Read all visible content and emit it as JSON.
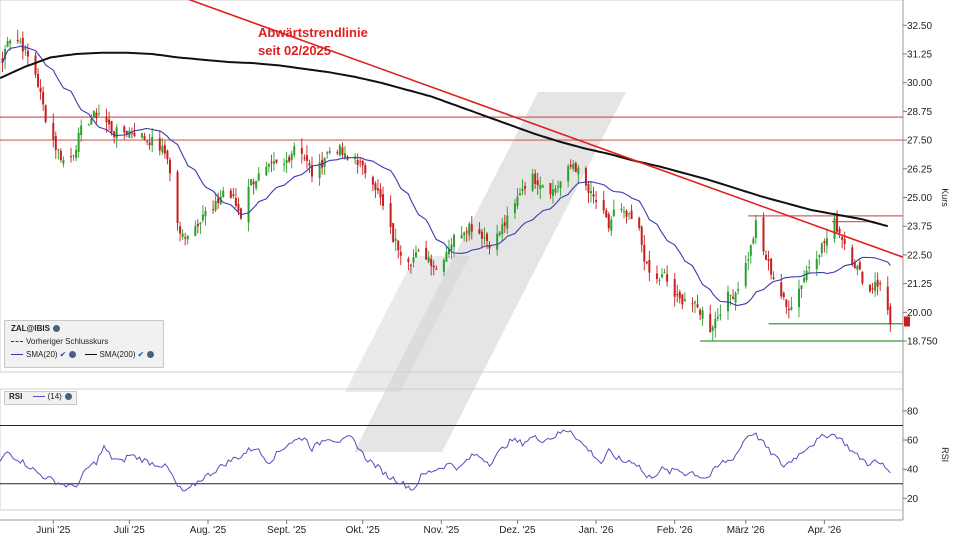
{
  "annotation": {
    "line1": "Abwärtstrendlinie",
    "line2": "seit 02/2025"
  },
  "legend": {
    "symbol": "ZAL@IBIS",
    "prev_close": "Vorheriger Schlusskurs",
    "sma20": "SMA(20)",
    "sma200": "SMA(200)"
  },
  "rsi_legend": {
    "name": "RSI",
    "param": "(14)"
  },
  "colors": {
    "up": "#2e9e2e",
    "down": "#c81e1e",
    "sma20": "#3b3bb0",
    "sma200": "#111111",
    "trend": "#e02020",
    "hline": "#d06060",
    "support": "#3a9a3a",
    "rsi": "#5050c0",
    "watermark": "#d0d0d0"
  },
  "chart_data": [
    {
      "type": "candlestick",
      "title": "",
      "ylabel": "Kurs",
      "ylim": [
        17.4,
        33.6
      ],
      "yticks": [
        "32.50",
        "31.25",
        "30.00",
        "28.75",
        "27.50",
        "26.25",
        "25.00",
        "23.75",
        "22.50",
        "21.25",
        "20.00",
        "18.750"
      ],
      "ytick_values": [
        32.5,
        31.25,
        30.0,
        28.75,
        27.5,
        26.25,
        25.0,
        23.75,
        22.5,
        21.25,
        20.0,
        18.75
      ],
      "xticks": [
        "Juni '25",
        "Juli '25",
        "Aug. '25",
        "Sept. '25",
        "Okt. '25",
        "Nov. '25",
        "Dez. '25",
        "Jan. '26",
        "Feb. '26",
        "März '26",
        "Apr. '26"
      ],
      "xtick_days": [
        21,
        51,
        82,
        113,
        143,
        174,
        204,
        235,
        266,
        294,
        325
      ],
      "xlim_days": [
        0,
        356
      ],
      "close_anchors": [
        [
          0,
          30.3
        ],
        [
          3,
          32.0
        ],
        [
          8,
          31.8
        ],
        [
          14,
          30.4
        ],
        [
          18,
          28.5
        ],
        [
          22,
          27.2
        ],
        [
          26,
          26.4
        ],
        [
          29,
          27.0
        ],
        [
          33,
          28.2
        ],
        [
          39,
          28.7
        ],
        [
          45,
          27.8
        ],
        [
          52,
          27.9
        ],
        [
          57,
          27.6
        ],
        [
          62,
          27.3
        ],
        [
          66,
          26.8
        ],
        [
          68,
          25.2
        ],
        [
          71,
          23.3
        ],
        [
          76,
          23.6
        ],
        [
          80,
          24.3
        ],
        [
          84,
          24.4
        ],
        [
          88,
          25.3
        ],
        [
          92,
          24.9
        ],
        [
          95,
          24.2
        ],
        [
          98,
          25.6
        ],
        [
          103,
          26.0
        ],
        [
          108,
          26.4
        ],
        [
          112,
          26.4
        ],
        [
          115,
          27.0
        ],
        [
          117,
          27.6
        ],
        [
          121,
          26.5
        ],
        [
          124,
          25.8
        ],
        [
          128,
          26.8
        ],
        [
          132,
          27.3
        ],
        [
          137,
          26.6
        ],
        [
          140,
          26.8
        ],
        [
          143,
          26.2
        ],
        [
          146,
          26.1
        ],
        [
          148,
          25.5
        ],
        [
          150,
          24.9
        ],
        [
          152,
          24.2
        ],
        [
          155,
          23.2
        ],
        [
          158,
          22.7
        ],
        [
          162,
          22.3
        ],
        [
          166,
          22.6
        ],
        [
          169,
          22.4
        ],
        [
          172,
          21.9
        ],
        [
          176,
          22.7
        ],
        [
          180,
          23.4
        ],
        [
          185,
          23.8
        ],
        [
          190,
          23.4
        ],
        [
          194,
          22.9
        ],
        [
          198,
          23.7
        ],
        [
          202,
          24.3
        ],
        [
          205,
          25.3
        ],
        [
          209,
          25.9
        ],
        [
          213,
          25.7
        ],
        [
          218,
          25.3
        ],
        [
          222,
          25.8
        ],
        [
          226,
          26.5
        ],
        [
          229,
          25.9
        ],
        [
          232,
          25.2
        ],
        [
          236,
          24.7
        ],
        [
          240,
          23.7
        ],
        [
          243,
          24.7
        ],
        [
          246,
          24.2
        ],
        [
          249,
          24.0
        ],
        [
          252,
          23.5
        ],
        [
          255,
          21.9
        ],
        [
          258,
          21.3
        ],
        [
          262,
          21.6
        ],
        [
          265,
          20.8
        ],
        [
          268,
          20.5
        ],
        [
          271,
          20.7
        ],
        [
          274,
          20.2
        ],
        [
          277,
          20.0
        ],
        [
          280,
          19.3
        ],
        [
          283,
          19.9
        ],
        [
          286,
          20.6
        ],
        [
          290,
          20.9
        ],
        [
          293,
          21.7
        ],
        [
          296,
          22.8
        ],
        [
          298,
          23.8
        ],
        [
          301,
          22.6
        ],
        [
          304,
          21.8
        ],
        [
          307,
          21.0
        ],
        [
          310,
          20.2
        ],
        [
          313,
          20.5
        ],
        [
          316,
          21.3
        ],
        [
          320,
          22.3
        ],
        [
          323,
          22.7
        ],
        [
          326,
          23.2
        ],
        [
          329,
          23.9
        ],
        [
          332,
          23.3
        ],
        [
          335,
          22.5
        ],
        [
          338,
          21.9
        ],
        [
          341,
          21.3
        ],
        [
          343,
          20.9
        ],
        [
          345,
          21.4
        ],
        [
          347,
          21.1
        ],
        [
          349,
          20.6
        ],
        [
          351,
          19.6
        ]
      ],
      "sma200_anchors": [
        [
          0,
          30.2
        ],
        [
          10,
          30.7
        ],
        [
          20,
          31.1
        ],
        [
          30,
          31.25
        ],
        [
          40,
          31.3
        ],
        [
          50,
          31.3
        ],
        [
          60,
          31.25
        ],
        [
          70,
          31.1
        ],
        [
          80,
          31.0
        ],
        [
          90,
          30.9
        ],
        [
          100,
          30.85
        ],
        [
          110,
          30.75
        ],
        [
          120,
          30.6
        ],
        [
          130,
          30.45
        ],
        [
          140,
          30.25
        ],
        [
          150,
          30.0
        ],
        [
          160,
          29.7
        ],
        [
          170,
          29.4
        ],
        [
          180,
          29.0
        ],
        [
          190,
          28.6
        ],
        [
          200,
          28.2
        ],
        [
          210,
          27.8
        ],
        [
          220,
          27.45
        ],
        [
          230,
          27.15
        ],
        [
          240,
          26.9
        ],
        [
          250,
          26.6
        ],
        [
          260,
          26.35
        ],
        [
          270,
          26.05
        ],
        [
          280,
          25.75
        ],
        [
          290,
          25.4
        ],
        [
          300,
          25.05
        ],
        [
          310,
          24.75
        ],
        [
          320,
          24.45
        ],
        [
          330,
          24.25
        ],
        [
          340,
          24.05
        ],
        [
          350,
          23.75
        ]
      ],
      "trendline": {
        "from": [
          70,
          33.8
        ],
        "to": [
          356,
          22.4
        ]
      },
      "resistance_lines": [
        28.5,
        27.5
      ],
      "short_resistance_lines": [
        {
          "value": 24.2,
          "from_day": 295,
          "to_day": 356
        },
        {
          "value": 23.95,
          "from_day": 328,
          "to_day": 345
        }
      ],
      "support_lines": [
        {
          "value": 19.5,
          "from_day": 303,
          "to_day": 356
        },
        {
          "value": 18.75,
          "from_day": 276,
          "to_day": 356
        }
      ],
      "last_price": 19.6
    },
    {
      "type": "line",
      "title": "",
      "ylabel": "RSI",
      "ylim": [
        12,
        95
      ],
      "yticks": [
        "80",
        "60",
        "40",
        "20"
      ],
      "ytick_values": [
        80,
        60,
        40,
        20
      ],
      "reference_lines": [
        30,
        70
      ],
      "series": [
        {
          "name": "(14)",
          "anchors": [
            [
              0,
              45
            ],
            [
              3,
              52
            ],
            [
              6,
              48
            ],
            [
              9,
              45
            ],
            [
              13,
              40
            ],
            [
              16,
              36
            ],
            [
              20,
              33
            ],
            [
              24,
              30
            ],
            [
              28,
              28
            ],
            [
              31,
              30
            ],
            [
              34,
              40
            ],
            [
              38,
              45
            ],
            [
              41,
              55
            ],
            [
              44,
              48
            ],
            [
              48,
              45
            ],
            [
              51,
              50
            ],
            [
              54,
              48
            ],
            [
              57,
              46
            ],
            [
              60,
              44
            ],
            [
              63,
              43
            ],
            [
              66,
              41
            ],
            [
              68,
              35
            ],
            [
              70,
              28
            ],
            [
              72,
              25
            ],
            [
              74,
              25
            ],
            [
              77,
              30
            ],
            [
              80,
              34
            ],
            [
              84,
              38
            ],
            [
              88,
              43
            ],
            [
              92,
              47
            ],
            [
              95,
              49
            ],
            [
              98,
              53
            ],
            [
              101,
              55
            ],
            [
              103,
              50
            ],
            [
              106,
              45
            ],
            [
              110,
              52
            ],
            [
              114,
              58
            ],
            [
              117,
              60
            ],
            [
              120,
              62
            ],
            [
              123,
              54
            ],
            [
              126,
              58
            ],
            [
              129,
              62
            ],
            [
              132,
              60
            ],
            [
              135,
              59
            ],
            [
              138,
              62
            ],
            [
              141,
              56
            ],
            [
              144,
              48
            ],
            [
              147,
              44
            ],
            [
              150,
              40
            ],
            [
              153,
              35
            ],
            [
              156,
              33
            ],
            [
              159,
              30
            ],
            [
              161,
              28
            ],
            [
              163,
              26
            ],
            [
              166,
              35
            ],
            [
              169,
              38
            ],
            [
              172,
              40
            ],
            [
              175,
              42
            ],
            [
              178,
              44
            ],
            [
              181,
              40
            ],
            [
              184,
              46
            ],
            [
              187,
              50
            ],
            [
              190,
              48
            ],
            [
              193,
              44
            ],
            [
              196,
              50
            ],
            [
              199,
              56
            ],
            [
              202,
              60
            ],
            [
              206,
              58
            ],
            [
              210,
              62
            ],
            [
              214,
              60
            ],
            [
              218,
              62
            ],
            [
              222,
              66
            ],
            [
              225,
              67
            ],
            [
              228,
              60
            ],
            [
              231,
              55
            ],
            [
              234,
              50
            ],
            [
              237,
              44
            ],
            [
              240,
              52
            ],
            [
              243,
              48
            ],
            [
              246,
              45
            ],
            [
              249,
              46
            ],
            [
              252,
              42
            ],
            [
              255,
              34
            ],
            [
              258,
              36
            ],
            [
              261,
              40
            ],
            [
              264,
              38
            ],
            [
              267,
              40
            ],
            [
              270,
              37
            ],
            [
              273,
              38
            ],
            [
              276,
              35
            ],
            [
              279,
              34
            ],
            [
              282,
              40
            ],
            [
              285,
              45
            ],
            [
              288,
              46
            ],
            [
              291,
              52
            ],
            [
              294,
              62
            ],
            [
              297,
              65
            ],
            [
              300,
              60
            ],
            [
              303,
              53
            ],
            [
              306,
              48
            ],
            [
              309,
              42
            ],
            [
              312,
              46
            ],
            [
              315,
              50
            ],
            [
              318,
              55
            ],
            [
              321,
              58
            ],
            [
              324,
              62
            ],
            [
              327,
              64
            ],
            [
              330,
              63
            ],
            [
              333,
              58
            ],
            [
              336,
              52
            ],
            [
              339,
              48
            ],
            [
              342,
              44
            ],
            [
              345,
              45
            ],
            [
              348,
              43
            ],
            [
              351,
              38
            ]
          ]
        }
      ]
    }
  ]
}
